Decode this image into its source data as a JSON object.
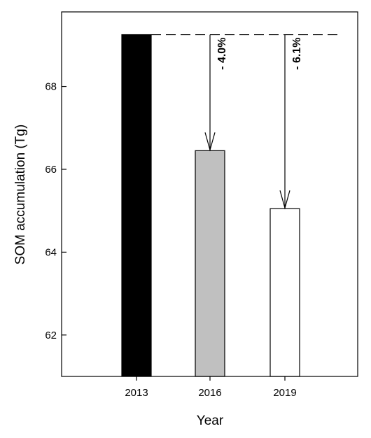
{
  "chart_data": {
    "type": "bar",
    "title": "",
    "xlabel": "Year",
    "ylabel": "SOM accumulation (Tg)",
    "categories": [
      "2013",
      "2016",
      "2019"
    ],
    "values": [
      69.25,
      66.45,
      65.05
    ],
    "colors": [
      "#000000",
      "#c0c0c0",
      "#ffffff"
    ],
    "ylim": [
      61,
      69.8
    ],
    "yticks": [
      62,
      64,
      66,
      68
    ],
    "grid": false,
    "legend": "none",
    "reference_line": {
      "value": 69.25,
      "style": "dashed"
    },
    "annotations": [
      {
        "from_category": "2016",
        "text": "- 4.0%"
      },
      {
        "from_category": "2019",
        "text": "- 6.1%"
      }
    ]
  }
}
